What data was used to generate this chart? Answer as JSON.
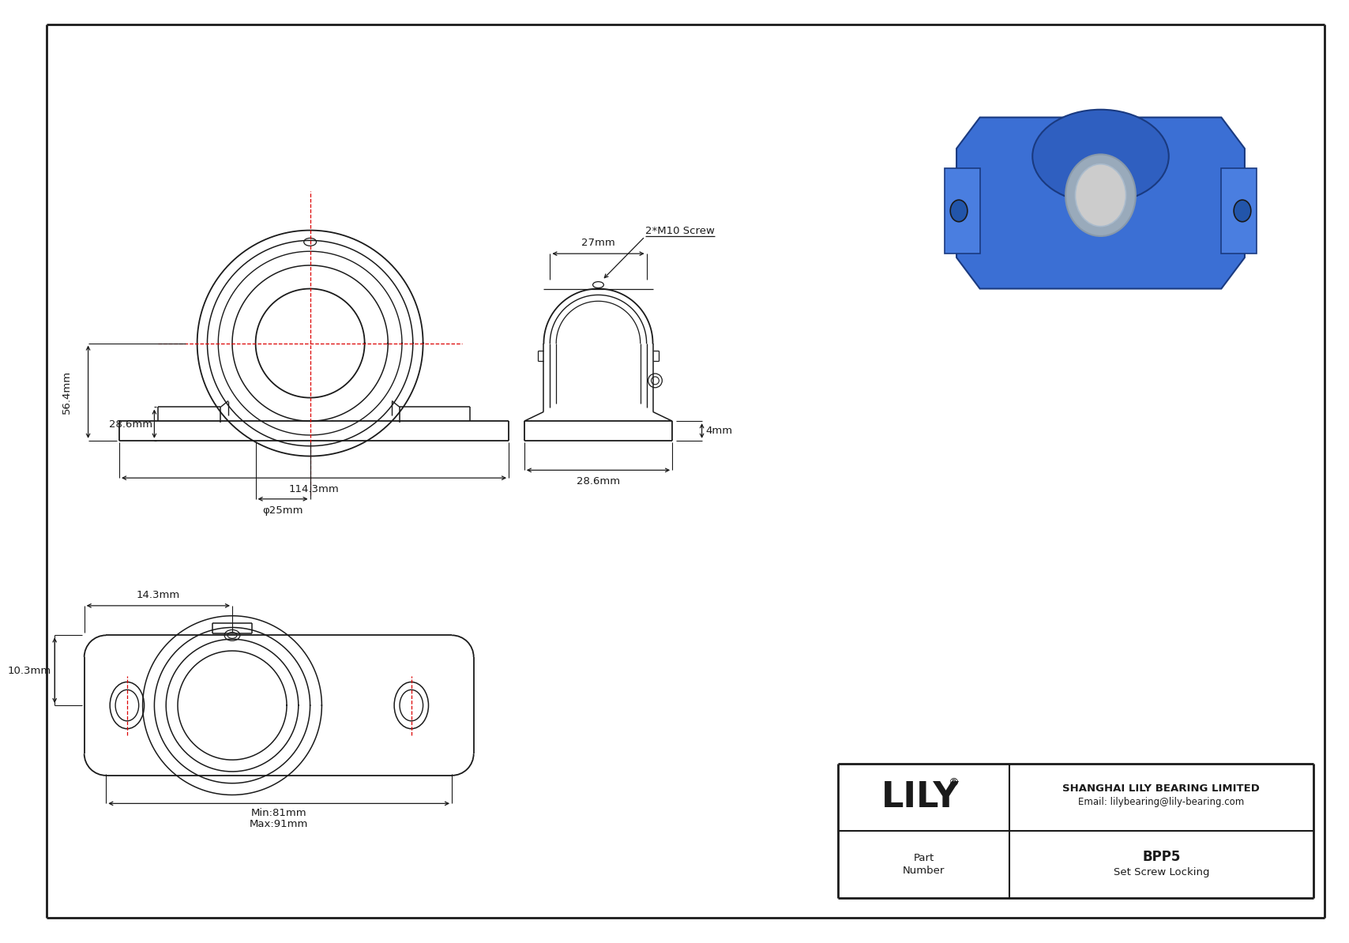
{
  "background_color": "#ffffff",
  "line_color": "#1a1a1a",
  "red_color": "#dd0000",
  "company": "SHANGHAI LILY BEARING LIMITED",
  "email": "Email: lilybearing@lily-bearing.com",
  "part_number_label": "Part\nNumber",
  "part_number": "BPP5",
  "locking": "Set Screw Locking",
  "dim_56_4": "56.4mm",
  "dim_28_6_left": "28.6mm",
  "dim_114_3": "114.3mm",
  "dim_phi25": "φ25mm",
  "dim_4mm": "4mm",
  "dim_28_6_right": "28.6mm",
  "dim_27mm": "27mm",
  "dim_2m10": "2*M10 Screw",
  "dim_14_3": "14.3mm",
  "dim_10_3": "10.3mm",
  "dim_min81": "Min:81mm",
  "dim_max91": "Max:91mm"
}
